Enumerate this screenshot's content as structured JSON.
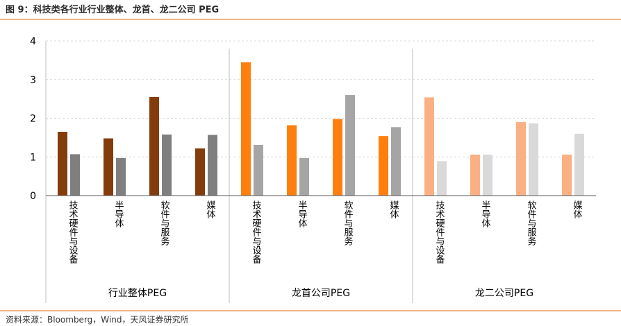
{
  "figure": {
    "title": "图 9：科技类各行业行业整体、龙首、龙二公司 PEG",
    "source": "资料来源：Bloomberg，Wind，天风证券研究所"
  },
  "chart_data": {
    "type": "bar",
    "title": "图 9：科技类各行业行业整体、龙首、龙二公司 PEG",
    "xlabel": "",
    "ylabel": "",
    "ylim": [
      0,
      4
    ],
    "yticks": [
      "0",
      "1",
      "2",
      "3",
      "4"
    ],
    "grid": true,
    "categories": [
      "技术硬件与设备",
      "半导体",
      "软件与服务",
      "媒体"
    ],
    "groups": [
      {
        "name": "行业整体PEG",
        "colors": [
          "#843c0c",
          "#7f7f7f"
        ],
        "series": [
          {
            "name": "bar1",
            "values": [
              1.65,
              1.48,
              2.55,
              1.22
            ]
          },
          {
            "name": "bar2",
            "values": [
              1.07,
              0.97,
              1.58,
              1.57
            ]
          }
        ]
      },
      {
        "name": "龙首公司PEG",
        "colors": [
          "#ff7f0e",
          "#a5a5a5"
        ],
        "series": [
          {
            "name": "bar1",
            "values": [
              3.45,
              1.82,
              1.98,
              1.54
            ]
          },
          {
            "name": "bar2",
            "values": [
              1.31,
              0.97,
              2.6,
              1.77
            ]
          }
        ]
      },
      {
        "name": "龙二公司PEG",
        "colors": [
          "#fbb084",
          "#d9d9d9"
        ],
        "series": [
          {
            "name": "bar1",
            "values": [
              2.54,
              1.06,
              1.9,
              1.06
            ]
          },
          {
            "name": "bar2",
            "values": [
              0.89,
              1.06,
              1.87,
              1.6
            ]
          }
        ]
      }
    ]
  }
}
